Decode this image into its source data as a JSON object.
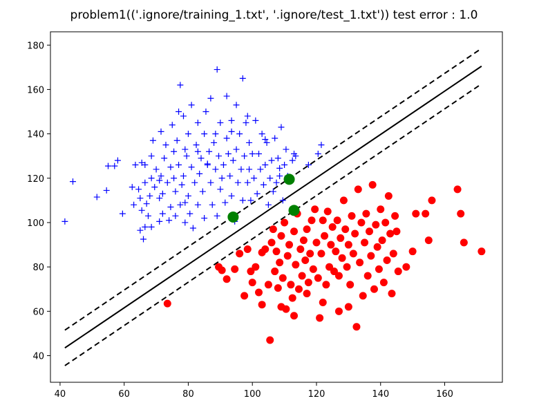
{
  "chart_data": {
    "type": "scatter",
    "title": "problem1(('.ignore/training_1.txt', '.ignore/test_1.txt')) test error : 1.0",
    "xlabel": "",
    "ylabel": "",
    "xlim": [
      37,
      178
    ],
    "ylim": [
      28,
      186
    ],
    "xticks": [
      40,
      60,
      80,
      100,
      120,
      140,
      160
    ],
    "yticks": [
      40,
      60,
      80,
      100,
      120,
      140,
      160,
      180
    ],
    "grid": false,
    "colors": {
      "class_plus": "#0000ff",
      "class_dot": "#ff0000",
      "support_vectors": "#008000",
      "boundary": "#000000"
    },
    "series": [
      {
        "marker": "plus",
        "color": "#0000ff",
        "points": [
          [
            41.5,
            100.5
          ],
          [
            44,
            118.5
          ],
          [
            51.5,
            111.5
          ],
          [
            54.5,
            114.5
          ],
          [
            55,
            125.5
          ],
          [
            57,
            125.5
          ],
          [
            58,
            128
          ],
          [
            59.5,
            104
          ],
          [
            62.5,
            116
          ],
          [
            63,
            108
          ],
          [
            63.5,
            126
          ],
          [
            64.5,
            115
          ],
          [
            65,
            111
          ],
          [
            65,
            96.5
          ],
          [
            65.5,
            105.5
          ],
          [
            65.5,
            127
          ],
          [
            66,
            92.5
          ],
          [
            66.5,
            126
          ],
          [
            66.5,
            118
          ],
          [
            66.5,
            98
          ],
          [
            67,
            108.5
          ],
          [
            67.5,
            103
          ],
          [
            68,
            112
          ],
          [
            68.5,
            120
          ],
          [
            68.5,
            130
          ],
          [
            69,
            137
          ],
          [
            69.5,
            116
          ],
          [
            70,
            124
          ],
          [
            71,
            100.5
          ],
          [
            71,
            111
          ],
          [
            71.5,
            121
          ],
          [
            71.5,
            141
          ],
          [
            72,
            104
          ],
          [
            72,
            113
          ],
          [
            72.5,
            129
          ],
          [
            73,
            135
          ],
          [
            73.5,
            118
          ],
          [
            74,
            101
          ],
          [
            74.5,
            125
          ],
          [
            74.5,
            107
          ],
          [
            75,
            144
          ],
          [
            75.5,
            120
          ],
          [
            75.5,
            132
          ],
          [
            76,
            114
          ],
          [
            76,
            103
          ],
          [
            76.5,
            137
          ],
          [
            77,
            150
          ],
          [
            77,
            126
          ],
          [
            77.5,
            108
          ],
          [
            77.5,
            162
          ],
          [
            78,
            117
          ],
          [
            78.5,
            148
          ],
          [
            78.5,
            121
          ],
          [
            79,
            100
          ],
          [
            79,
            133
          ],
          [
            79.5,
            130
          ],
          [
            80,
            112
          ],
          [
            80,
            140
          ],
          [
            80.5,
            104
          ],
          [
            81,
            125
          ],
          [
            81,
            153
          ],
          [
            81.5,
            97.5
          ],
          [
            82,
            118
          ],
          [
            82.5,
            135
          ],
          [
            83,
            145
          ],
          [
            83,
            108
          ],
          [
            83.5,
            122
          ],
          [
            84,
            129
          ],
          [
            84.5,
            114
          ],
          [
            85,
            140
          ],
          [
            85,
            102
          ],
          [
            85.5,
            150
          ],
          [
            86,
            126
          ],
          [
            86.5,
            132
          ],
          [
            87,
            118
          ],
          [
            87,
            156
          ],
          [
            87.5,
            108
          ],
          [
            88,
            136
          ],
          [
            88.5,
            124
          ],
          [
            89,
            103
          ],
          [
            89,
            169
          ],
          [
            89.5,
            130
          ],
          [
            90,
            115
          ],
          [
            90,
            145
          ],
          [
            90.5,
            120
          ],
          [
            91,
            126
          ],
          [
            91.5,
            109
          ],
          [
            92,
            157
          ],
          [
            92,
            138
          ],
          [
            92.5,
            131
          ],
          [
            93,
            121
          ],
          [
            93.5,
            112
          ],
          [
            93.5,
            146
          ],
          [
            94,
            128
          ],
          [
            94.5,
            100.5
          ],
          [
            95,
            133
          ],
          [
            95,
            153
          ],
          [
            95.5,
            118
          ],
          [
            96,
            140
          ],
          [
            96.5,
            124
          ],
          [
            97,
            165
          ],
          [
            97,
            110
          ],
          [
            97.5,
            130
          ],
          [
            98,
            145
          ],
          [
            98.5,
            118
          ],
          [
            99,
            124
          ],
          [
            99,
            136
          ],
          [
            99.5,
            110
          ],
          [
            100,
            131
          ],
          [
            100.5,
            120
          ],
          [
            101,
            146
          ],
          [
            101.5,
            113
          ],
          [
            102,
            131
          ],
          [
            102.5,
            124
          ],
          [
            103,
            140
          ],
          [
            103.5,
            117
          ],
          [
            104,
            126
          ],
          [
            104.5,
            136
          ],
          [
            105,
            108
          ],
          [
            105.5,
            120
          ],
          [
            106,
            128
          ],
          [
            106.5,
            114
          ],
          [
            107,
            138
          ],
          [
            107.5,
            118
          ],
          [
            108,
            129
          ],
          [
            108.5,
            121
          ],
          [
            109,
            143
          ],
          [
            109.5,
            110
          ],
          [
            110,
            126
          ],
          [
            110.5,
            133
          ],
          [
            111,
            121
          ],
          [
            112.5,
            128
          ],
          [
            113,
            131
          ],
          [
            113.5,
            130
          ],
          [
            117.5,
            126
          ],
          [
            120.5,
            131
          ],
          [
            121.5,
            135
          ],
          [
            86,
            126.5
          ],
          [
            88.5,
            140
          ],
          [
            93.5,
            141
          ],
          [
            98.5,
            148
          ],
          [
            104,
            137.5
          ],
          [
            108.5,
            124.5
          ],
          [
            83,
            132
          ],
          [
            79,
            109
          ],
          [
            71,
            119
          ],
          [
            68.5,
            98
          ]
        ]
      },
      {
        "marker": "dot",
        "color": "#ff0000",
        "points": [
          [
            73.5,
            63.5
          ],
          [
            89.5,
            80
          ],
          [
            90.5,
            78.5
          ],
          [
            92,
            74.5
          ],
          [
            94.5,
            79
          ],
          [
            96,
            86
          ],
          [
            97.5,
            67
          ],
          [
            98.5,
            88
          ],
          [
            99.5,
            78
          ],
          [
            100,
            73
          ],
          [
            101,
            80
          ],
          [
            102,
            68.5
          ],
          [
            103,
            86.5
          ],
          [
            104,
            88
          ],
          [
            105,
            72
          ],
          [
            105.5,
            47
          ],
          [
            106,
            91
          ],
          [
            106.5,
            97
          ],
          [
            107,
            78
          ],
          [
            107.5,
            87
          ],
          [
            108,
            70.5
          ],
          [
            108.5,
            82
          ],
          [
            109,
            94
          ],
          [
            109.5,
            75
          ],
          [
            110,
            100
          ],
          [
            110.5,
            61
          ],
          [
            111,
            85
          ],
          [
            111.5,
            90
          ],
          [
            112,
            72
          ],
          [
            112.5,
            66
          ],
          [
            113,
            96
          ],
          [
            113.5,
            81
          ],
          [
            114,
            104
          ],
          [
            114.5,
            70
          ],
          [
            115,
            88
          ],
          [
            115.5,
            76
          ],
          [
            116,
            92
          ],
          [
            116.5,
            83
          ],
          [
            117,
            97
          ],
          [
            117.5,
            73
          ],
          [
            118,
            86
          ],
          [
            118.5,
            101
          ],
          [
            119,
            79
          ],
          [
            119.5,
            106
          ],
          [
            120,
            91
          ],
          [
            120.5,
            75
          ],
          [
            121,
            57
          ],
          [
            121.5,
            86
          ],
          [
            122,
            101
          ],
          [
            122.5,
            94
          ],
          [
            123,
            72
          ],
          [
            123.5,
            105
          ],
          [
            124,
            80
          ],
          [
            124.5,
            90
          ],
          [
            125,
            98
          ],
          [
            125.5,
            78
          ],
          [
            126,
            87
          ],
          [
            126.5,
            101
          ],
          [
            127,
            76
          ],
          [
            127.5,
            93
          ],
          [
            128,
            84
          ],
          [
            128.5,
            110
          ],
          [
            129,
            97
          ],
          [
            129.5,
            80
          ],
          [
            130,
            90
          ],
          [
            130.5,
            72
          ],
          [
            131,
            103
          ],
          [
            131.5,
            86
          ],
          [
            132,
            95
          ],
          [
            132.5,
            53
          ],
          [
            133,
            115
          ],
          [
            133.5,
            82
          ],
          [
            134,
            100
          ],
          [
            134.5,
            67
          ],
          [
            135,
            91
          ],
          [
            135.5,
            104
          ],
          [
            136,
            76
          ],
          [
            136.5,
            96
          ],
          [
            137,
            85
          ],
          [
            137.5,
            117
          ],
          [
            138,
            70
          ],
          [
            138.5,
            99
          ],
          [
            139,
            89
          ],
          [
            139.5,
            79
          ],
          [
            140,
            106
          ],
          [
            140.5,
            92
          ],
          [
            141,
            73
          ],
          [
            141.5,
            100
          ],
          [
            142,
            83
          ],
          [
            142.5,
            112
          ],
          [
            143,
            95
          ],
          [
            143.5,
            68
          ],
          [
            144,
            86
          ],
          [
            144.5,
            103
          ],
          [
            145,
            96
          ],
          [
            145.5,
            78
          ],
          [
            148,
            80
          ],
          [
            150,
            87
          ],
          [
            151,
            104
          ],
          [
            154,
            104
          ],
          [
            155,
            92
          ],
          [
            156,
            110
          ],
          [
            164,
            115
          ],
          [
            165,
            104
          ],
          [
            166,
            91
          ],
          [
            171.5,
            87
          ],
          [
            117,
            68
          ],
          [
            122,
            64
          ],
          [
            127,
            60
          ],
          [
            130,
            62
          ],
          [
            109,
            62
          ],
          [
            103,
            63
          ],
          [
            113,
            58
          ]
        ]
      }
    ],
    "support_vectors": [
      [
        94,
        102.5
      ],
      [
        111.5,
        119.5
      ],
      [
        113,
        105.5
      ]
    ],
    "lines": [
      {
        "style": "solid",
        "x": [
          41.5,
          171.5
        ],
        "y": [
          43.5,
          170.5
        ]
      },
      {
        "style": "dashed",
        "x": [
          41.5,
          171.5
        ],
        "y": [
          51.5,
          178.5
        ]
      },
      {
        "style": "dashed",
        "x": [
          41.5,
          171.5
        ],
        "y": [
          35.5,
          162.5
        ]
      }
    ]
  }
}
